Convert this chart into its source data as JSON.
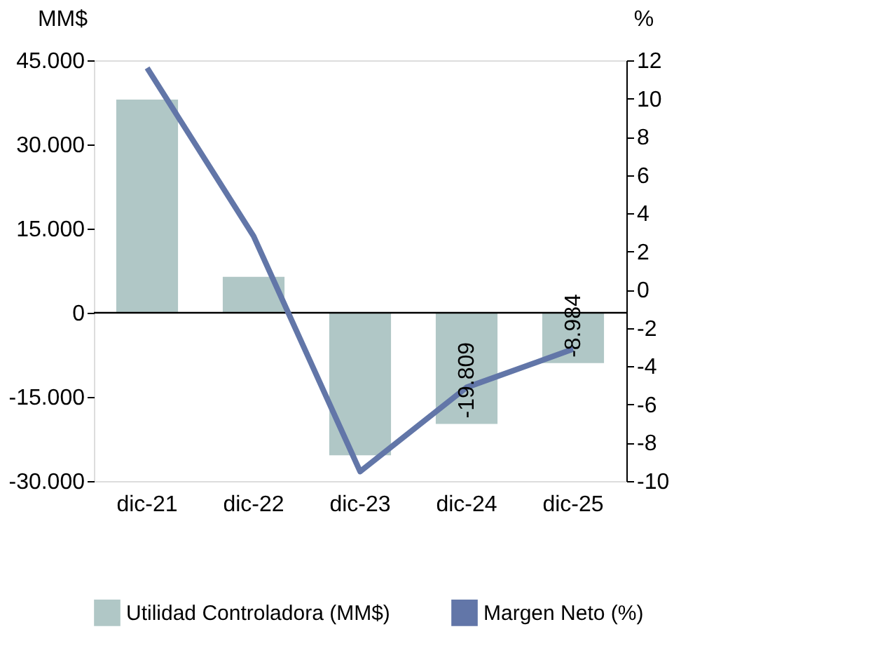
{
  "chart_data": {
    "type": "bar",
    "categories": [
      "dic-21",
      "dic-22",
      "dic-23",
      "dic-24",
      "dic-25"
    ],
    "ylabel": "MM$",
    "y2label": "%",
    "ylim": [
      -30000,
      45000
    ],
    "yticks": [
      {
        "value": -30000,
        "label": "-30.000"
      },
      {
        "value": -15000,
        "label": "-15.000"
      },
      0,
      {
        "value": 15000,
        "label": "15.000"
      },
      {
        "value": 30000,
        "label": "30.000"
      },
      {
        "value": 45000,
        "label": "45.000"
      }
    ],
    "y2lim": [
      -10,
      12
    ],
    "y2ticks": [
      -10,
      -8,
      -6,
      -4,
      -2,
      0,
      2,
      4,
      6,
      8,
      10,
      12
    ],
    "series": [
      {
        "name": "Utilidad Controladora (MM$)",
        "color": "#b0c7c6",
        "values": [
          38000,
          6400,
          -25400,
          -19809,
          -8984
        ],
        "value_labels": [
          null,
          null,
          null,
          "-19.809",
          "-8.984"
        ]
      },
      {
        "name": "Margen Neto (%)",
        "type": "line",
        "axis": "y2",
        "color": "#6276a8",
        "values": [
          11.6,
          2.8,
          -9.5,
          -5.1,
          -3.1
        ]
      }
    ],
    "ref_lines": [
      {
        "axis": "y",
        "value": 0,
        "color": "#000000"
      }
    ],
    "legend": "bottom",
    "grid": false
  }
}
